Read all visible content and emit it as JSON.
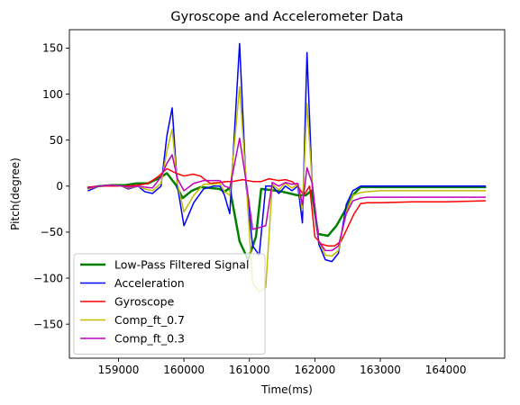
{
  "chart_data": {
    "type": "line",
    "title": "Gyroscope and Accelerometer Data",
    "xlabel": "Time(ms)",
    "ylabel": "Pitch(degree)",
    "xlim": [
      158250,
      164900
    ],
    "ylim": [
      -187,
      170
    ],
    "xticks": [
      159000,
      160000,
      161000,
      162000,
      163000,
      164000
    ],
    "yticks": [
      -150,
      -100,
      -50,
      0,
      50,
      100,
      150
    ],
    "grid": false,
    "legend_position": "lower-left",
    "series": [
      {
        "name": "Low-Pass Filtered Signal",
        "color": "#008000",
        "width": 2.5,
        "x": [
          158540,
          158700,
          158900,
          159100,
          159280,
          159450,
          159600,
          159740,
          159880,
          159980,
          160120,
          160260,
          160400,
          160540,
          160620,
          160700,
          160850,
          160980,
          161100,
          161180,
          161300,
          161400,
          161500,
          161620,
          161740,
          161860,
          161950,
          162050,
          162200,
          162330,
          162450,
          162580,
          162700,
          162900,
          163200,
          163600,
          164000,
          164300,
          164600
        ],
        "y": [
          -2,
          0,
          1,
          1,
          3,
          3,
          8,
          14,
          1,
          -13,
          -5,
          -1,
          -2,
          -3,
          -6,
          -2,
          -60,
          -80,
          -55,
          -3,
          -4,
          -5,
          -6,
          -8,
          -10,
          -10,
          -5,
          -52,
          -54,
          -43,
          -28,
          -10,
          -1,
          -1,
          -1,
          -1,
          -1,
          -1,
          -1
        ]
      },
      {
        "name": "Acceleration",
        "color": "#0000ff",
        "width": 1.5,
        "x": [
          158540,
          158700,
          158900,
          159050,
          159150,
          159300,
          159400,
          159520,
          159650,
          159740,
          159820,
          159900,
          160000,
          160150,
          160300,
          160450,
          160550,
          160620,
          160700,
          160850,
          160950,
          161050,
          161150,
          161250,
          161350,
          161450,
          161550,
          161650,
          161740,
          161810,
          161880,
          161960,
          162060,
          162160,
          162260,
          162360,
          162480,
          162580,
          162700,
          162800,
          163000,
          163300,
          163600,
          164000,
          164300,
          164600
        ],
        "y": [
          -5,
          0,
          1,
          0,
          -3,
          0,
          -6,
          -8,
          0,
          55,
          85,
          0,
          -43,
          -18,
          -3,
          0,
          0,
          -10,
          -30,
          155,
          0,
          -65,
          -75,
          0,
          0,
          -8,
          0,
          -5,
          0,
          -40,
          145,
          0,
          -63,
          -80,
          -82,
          -73,
          -20,
          -5,
          0,
          0,
          0,
          0,
          0,
          0,
          0,
          0
        ]
      },
      {
        "name": "Gyroscope",
        "color": "#ff0000",
        "width": 1.5,
        "x": [
          158540,
          158700,
          158900,
          159100,
          159300,
          159450,
          159600,
          159740,
          159880,
          160000,
          160140,
          160250,
          160400,
          160540,
          160650,
          160740,
          160900,
          161050,
          161180,
          161300,
          161450,
          161550,
          161650,
          161740,
          161830,
          161920,
          162000,
          162100,
          162200,
          162300,
          162400,
          162500,
          162600,
          162700,
          162800,
          163000,
          163500,
          164000,
          164600
        ],
        "y": [
          -1,
          0,
          0,
          0,
          1,
          3,
          10,
          19,
          14,
          11,
          13,
          11,
          3,
          4,
          5,
          5,
          7,
          5,
          5,
          8,
          6,
          7,
          5,
          0,
          -10,
          0,
          -55,
          -63,
          -65,
          -65,
          -60,
          -45,
          -30,
          -19,
          -18,
          -18,
          -17,
          -17,
          -16
        ]
      },
      {
        "name": "Comp_ft_0.7",
        "color": "#bfbf00",
        "width": 1.5,
        "x": [
          158540,
          158700,
          158900,
          159050,
          159150,
          159300,
          159400,
          159520,
          159650,
          159740,
          159820,
          159900,
          160000,
          160150,
          160300,
          160450,
          160550,
          160620,
          160700,
          160850,
          160950,
          161050,
          161150,
          161250,
          161350,
          161450,
          161550,
          161650,
          161740,
          161810,
          161880,
          161960,
          162060,
          162160,
          162260,
          162360,
          162480,
          162580,
          162700,
          162800,
          163000,
          163300,
          163600,
          164000,
          164300,
          164600
        ],
        "y": [
          -3,
          0,
          1,
          0,
          -2,
          0,
          -3,
          -5,
          3,
          38,
          62,
          3,
          -28,
          -10,
          2,
          2,
          3,
          -6,
          -10,
          108,
          5,
          -105,
          -115,
          -110,
          2,
          -4,
          3,
          -2,
          2,
          -26,
          90,
          2,
          -60,
          -75,
          -76,
          -70,
          -28,
          -10,
          -7,
          -6,
          -5,
          -5,
          -5,
          -5,
          -5,
          -5
        ]
      },
      {
        "name": "Comp_ft_0.3",
        "color": "#bf00bf",
        "width": 1.5,
        "x": [
          158540,
          158700,
          158900,
          159050,
          159150,
          159300,
          159400,
          159520,
          159650,
          159740,
          159820,
          159900,
          160000,
          160150,
          160300,
          160450,
          160550,
          160620,
          160700,
          160850,
          160950,
          161050,
          161150,
          161250,
          161350,
          161450,
          161550,
          161650,
          161740,
          161810,
          161880,
          161960,
          162060,
          162160,
          162260,
          162360,
          162480,
          162580,
          162700,
          162800,
          163000,
          163300,
          163600,
          164000,
          164300,
          164600
        ],
        "y": [
          -2,
          0,
          1,
          0,
          -1,
          0,
          -1,
          -2,
          10,
          25,
          34,
          8,
          -5,
          3,
          6,
          6,
          6,
          0,
          -2,
          52,
          5,
          -47,
          -45,
          -43,
          4,
          0,
          4,
          2,
          3,
          -20,
          20,
          3,
          -60,
          -70,
          -70,
          -65,
          -30,
          -16,
          -13,
          -12,
          -12,
          -12,
          -12,
          -12,
          -12,
          -12
        ]
      }
    ]
  }
}
